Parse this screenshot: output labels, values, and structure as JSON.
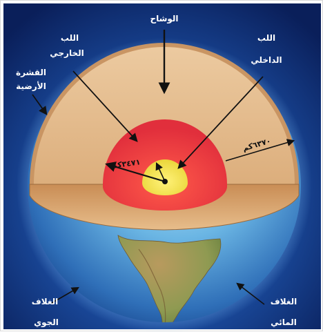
{
  "labels": {
    "mantle": "الوشاح",
    "outer_core_line1": "اللب",
    "outer_core_line2": "الخارجي",
    "inner_core_line1": "اللب",
    "inner_core_line2": "الداخلي",
    "crust_line1": "القشرة",
    "crust_line2": "الأرضية",
    "atmosphere_line1": "الغلاف",
    "atmosphere_line2": "الجوي",
    "hydrosphere_line1": "الغلاف",
    "hydrosphere_line2": "المائي"
  },
  "measurements": {
    "earth_radius": "٦٣٧٠كم",
    "core_radius": "٣٤٧١كم"
  },
  "colors": {
    "background": "#0b2a6e",
    "crust": "#d9a873",
    "mantle": "#e8c49a",
    "outer_core": "#e6333d",
    "inner_core": "#f0e14a",
    "ocean": "#5aa9dd"
  }
}
